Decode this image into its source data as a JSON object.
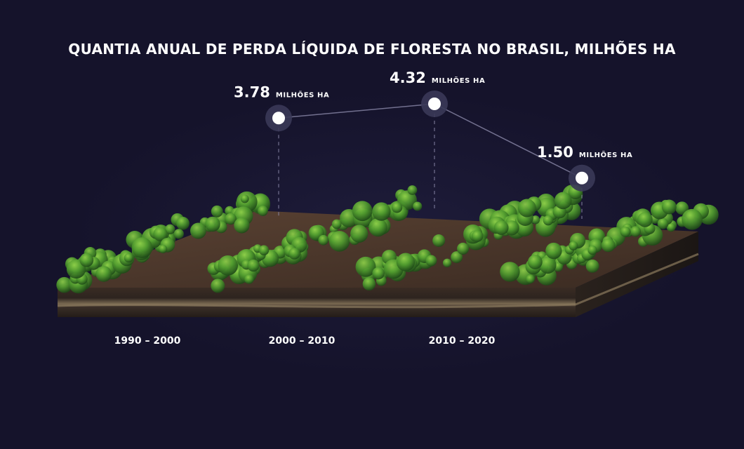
{
  "title": "QUANTIA ANUAL DE PERDA LÍQUIDA DE FLORESTA NO BRASIL, MILHÕES HA",
  "colors": {
    "background": "#15132b",
    "forest": "#3f8a2a",
    "soil": "#4a3527",
    "connector": "#8a88a8"
  },
  "chart_data": {
    "type": "line",
    "categories": [
      "1990 – 2000",
      "2000 – 2010",
      "2010 – 2020"
    ],
    "values": [
      3.78,
      4.32,
      1.5
    ],
    "value_labels": [
      "3.78",
      "4.32",
      "1.50"
    ],
    "unit_label": "MILHÕES HA",
    "grid": false
  }
}
